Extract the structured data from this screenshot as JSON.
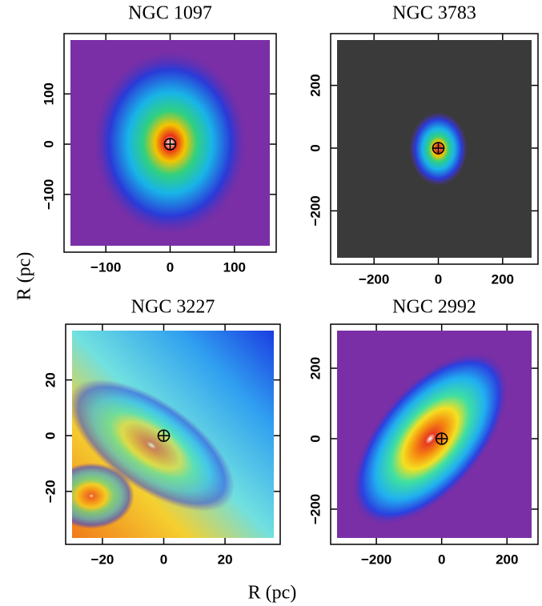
{
  "chart_data": [
    {
      "type": "image",
      "title": "NGC 1097",
      "xlim": [
        -165,
        165
      ],
      "ylim": [
        -215,
        220
      ],
      "xticks": [
        {
          "value": -100,
          "label": "−100"
        },
        0,
        100
      ],
      "yticks": [
        {
          "value": -100,
          "label": "−100"
        },
        0,
        100
      ]
    },
    {
      "type": "image",
      "title": "NGC 3783",
      "xlim": [
        -335,
        310
      ],
      "ylim": [
        -370,
        365
      ],
      "xticks": [
        {
          "value": -200,
          "label": "−200"
        },
        0,
        200
      ],
      "yticks": [
        {
          "value": -200,
          "label": "−200"
        },
        0,
        200
      ]
    },
    {
      "type": "image",
      "title": "NGC 3227",
      "xlim": [
        -32,
        38
      ],
      "ylim": [
        -39,
        40
      ],
      "xticks": [
        {
          "value": -20,
          "label": "−20"
        },
        0,
        20
      ],
      "yticks": [
        {
          "value": -20,
          "label": "−20"
        },
        0,
        20
      ]
    },
    {
      "type": "image",
      "title": "NGC 2992",
      "xlim": [
        -340,
        295
      ],
      "ylim": [
        -300,
        325
      ],
      "xticks": [
        {
          "value": -200,
          "label": "−200"
        },
        0,
        200
      ],
      "yticks": [
        {
          "value": -200,
          "label": "−200"
        },
        0,
        200
      ]
    }
  ],
  "x_label": "R (pc)",
  "y_label": "R (pc)"
}
